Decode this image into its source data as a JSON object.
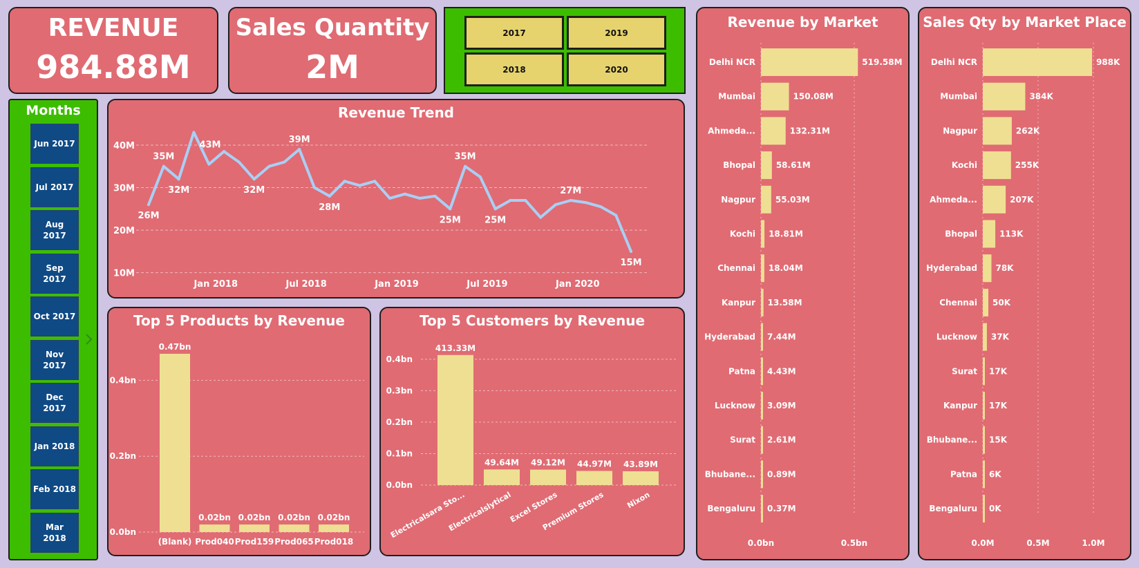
{
  "kpis": {
    "revenue": {
      "label": "REVENUE",
      "value": "984.88M"
    },
    "sales_qty": {
      "label": "Sales Quantity",
      "value": "2M"
    }
  },
  "years": [
    "2017",
    "2019",
    "2018",
    "2020"
  ],
  "months": {
    "title": "Months",
    "items": [
      "Jun 2017",
      "Jul 2017",
      "Aug\n2017",
      "Sep\n2017",
      "Oct 2017",
      "Nov\n2017",
      "Dec\n2017",
      "Jan 2018",
      "Feb 2018",
      "Mar\n2018"
    ]
  },
  "colors": {
    "card": "#e06b73",
    "bar": "#efdf93",
    "line": "#a9cff5",
    "slicer": "#3cbd00",
    "month_btn": "#0f4a85"
  },
  "chart_data": [
    {
      "type": "line",
      "title": "Revenue Trend",
      "x_ticks": [
        "Jan 2018",
        "Jul 2018",
        "Jan 2019",
        "Jul 2019",
        "Jan 2020"
      ],
      "y_ticks": [
        "10M",
        "20M",
        "30M",
        "40M"
      ],
      "ylim": [
        8,
        46
      ],
      "y_values": [
        26,
        35,
        32,
        43,
        35.5,
        38.5,
        36,
        32,
        35,
        36,
        39,
        30,
        28,
        31.5,
        30.5,
        31.5,
        27.5,
        28.5,
        27.5,
        28,
        25,
        35,
        32.5,
        25,
        27,
        27,
        23,
        26,
        27,
        26.5,
        25.5,
        23.5,
        15
      ],
      "point_labels": [
        {
          "index": 0,
          "text": "26M",
          "pos": "below"
        },
        {
          "index": 1,
          "text": "35M",
          "pos": "above"
        },
        {
          "index": 2,
          "text": "32M",
          "pos": "below"
        },
        {
          "index": 3,
          "text": "43M",
          "pos": "right"
        },
        {
          "index": 7,
          "text": "32M",
          "pos": "below"
        },
        {
          "index": 10,
          "text": "39M",
          "pos": "above"
        },
        {
          "index": 12,
          "text": "28M",
          "pos": "below"
        },
        {
          "index": 20,
          "text": "25M",
          "pos": "below"
        },
        {
          "index": 21,
          "text": "35M",
          "pos": "above"
        },
        {
          "index": 23,
          "text": "25M",
          "pos": "below"
        },
        {
          "index": 28,
          "text": "27M",
          "pos": "above"
        },
        {
          "index": 32,
          "text": "15M",
          "pos": "below"
        }
      ],
      "grid": true
    },
    {
      "type": "bar",
      "title": "Top 5 Products by Revenue",
      "categories": [
        "(Blank)",
        "Prod040",
        "Prod159",
        "Prod065",
        "Prod018"
      ],
      "values": [
        0.47,
        0.02,
        0.02,
        0.02,
        0.02
      ],
      "value_labels": [
        "0.47bn",
        "0.02bn",
        "0.02bn",
        "0.02bn",
        "0.02bn"
      ],
      "y_ticks": [
        "0.0bn",
        "0.2bn",
        "0.4bn"
      ],
      "ylim": [
        0,
        0.47
      ],
      "grid": true
    },
    {
      "type": "bar",
      "title": "Top 5 Customers by Revenue",
      "categories": [
        "Electricalsara Sto...",
        "Electricalslytical",
        "Excel Stores",
        "Premium Stores",
        "Nixon"
      ],
      "values": [
        413.33,
        49.64,
        49.12,
        44.97,
        43.89
      ],
      "value_labels": [
        "413.33M",
        "49.64M",
        "49.12M",
        "44.97M",
        "43.89M"
      ],
      "y_ticks": [
        "0.0bn",
        "0.1bn",
        "0.2bn",
        "0.3bn",
        "0.4bn"
      ],
      "ylim": [
        0,
        415
      ],
      "grid": true
    },
    {
      "type": "bar",
      "orientation": "horizontal",
      "title": "Revenue by Market",
      "categories": [
        "Delhi NCR",
        "Mumbai",
        "Ahmeda...",
        "Bhopal",
        "Nagpur",
        "Kochi",
        "Chennai",
        "Kanpur",
        "Hyderabad",
        "Patna",
        "Lucknow",
        "Surat",
        "Bhubane...",
        "Bengaluru"
      ],
      "values": [
        519.58,
        150.08,
        132.31,
        58.61,
        55.03,
        18.81,
        18.04,
        13.58,
        7.44,
        4.43,
        3.09,
        2.61,
        0.89,
        0.37
      ],
      "value_labels": [
        "519.58M",
        "150.08M",
        "132.31M",
        "58.61M",
        "55.03M",
        "18.81M",
        "18.04M",
        "13.58M",
        "7.44M",
        "4.43M",
        "3.09M",
        "2.61M",
        "0.89M",
        "0.37M"
      ],
      "x_ticks": [
        "0.0bn",
        "0.5bn"
      ],
      "xlim": [
        0,
        500
      ]
    },
    {
      "type": "bar",
      "orientation": "horizontal",
      "title": "Sales Qty by Market Place",
      "categories": [
        "Delhi NCR",
        "Mumbai",
        "Nagpur",
        "Kochi",
        "Ahmeda...",
        "Bhopal",
        "Hyderabad",
        "Chennai",
        "Lucknow",
        "Surat",
        "Kanpur",
        "Bhubane...",
        "Patna",
        "Bengaluru"
      ],
      "values": [
        988,
        384,
        262,
        255,
        207,
        113,
        78,
        50,
        37,
        17,
        17,
        15,
        6,
        0
      ],
      "value_labels": [
        "988K",
        "384K",
        "262K",
        "255K",
        "207K",
        "113K",
        "78K",
        "50K",
        "37K",
        "17K",
        "17K",
        "15K",
        "6K",
        "0K"
      ],
      "x_ticks": [
        "0.0M",
        "0.5M",
        "1.0M"
      ],
      "xlim": [
        0,
        1000
      ]
    }
  ]
}
